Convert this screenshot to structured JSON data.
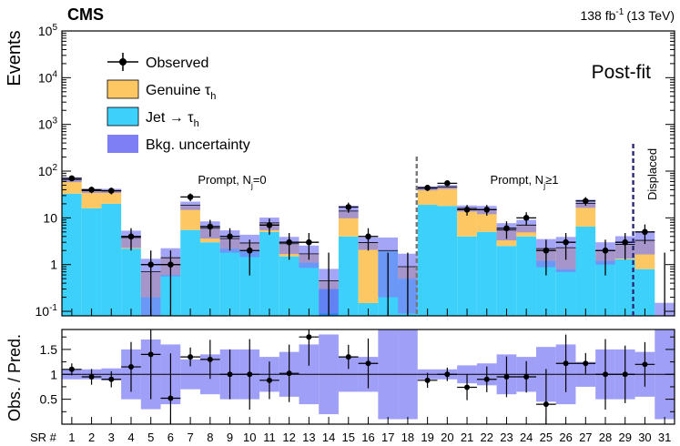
{
  "chart_data": {
    "type": "bar",
    "experiment": "CMS",
    "lumi": "138 fb",
    "lumi_sup": "-1",
    "energy": "(13 TeV)",
    "stage": "Post-fit",
    "ylabel": "Events",
    "ratio_ylabel": "Obs. / Pred.",
    "xlabel": "SR #",
    "ylim": [
      0.08,
      100000
    ],
    "ratio_ylim": [
      0.0,
      1.9
    ],
    "yticks_main": [
      {
        "base": "10",
        "exp": "-1",
        "v": 0.1
      },
      {
        "base": "1",
        "exp": "",
        "v": 1
      },
      {
        "base": "10",
        "exp": "",
        "v": 10
      },
      {
        "base": "10",
        "exp": "2",
        "v": 100
      },
      {
        "base": "10",
        "exp": "3",
        "v": 1000
      },
      {
        "base": "10",
        "exp": "4",
        "v": 10000
      },
      {
        "base": "10",
        "exp": "5",
        "v": 100000
      }
    ],
    "yticks_ratio": [
      "0.5",
      "1",
      "1.5"
    ],
    "categories": [
      "1",
      "2",
      "3",
      "4",
      "5",
      "6",
      "7",
      "8",
      "9",
      "10",
      "11",
      "12",
      "13",
      "14",
      "15",
      "16",
      "17",
      "18",
      "19",
      "20",
      "21",
      "22",
      "23",
      "24",
      "25",
      "26",
      "27",
      "28",
      "29",
      "30",
      "31"
    ],
    "region_labels": [
      {
        "text": "Prompt, N",
        "sub": "j",
        "rest": "=0"
      },
      {
        "text": "Prompt, N",
        "sub": "j",
        "rest": "≥1"
      },
      {
        "text": "Displaced",
        "sub": "",
        "rest": ""
      }
    ],
    "legend": {
      "observed": "Observed",
      "genuine": "Genuine τ",
      "genuine_sub": "h",
      "jet": "Jet → τ",
      "jet_sub": "h",
      "uncertainty": "Bkg. uncertainty"
    },
    "colors": {
      "genuine": "#fdc864",
      "jet": "#3cd0fa",
      "jet_highlight": "#1e8bf0",
      "uncertainty": "#7f7ff5",
      "uncertainty_overlap": "#806b8a",
      "divider_gray": "#777777",
      "divider_navy": "#2a2a7a",
      "observed": "#000000"
    },
    "series": [
      {
        "name": "Jet → τh",
        "values": [
          33,
          16,
          20,
          2.2,
          0.2,
          0.6,
          5.5,
          3,
          2.2,
          2,
          5,
          1.5,
          1.1,
          0.3,
          4,
          0.15,
          2,
          0.5,
          19,
          18,
          4,
          5,
          2.5,
          4,
          1.2,
          0.8,
          6.5,
          1.2,
          1.3,
          0.8,
          0.08
        ]
      },
      {
        "name": "Genuine τh",
        "values": [
          33,
          22,
          18,
          1.6,
          0.5,
          0.8,
          13,
          3,
          1.4,
          0.9,
          2.8,
          1.3,
          0.6,
          0.15,
          10,
          2.8,
          0,
          0.4,
          24,
          28,
          12,
          10,
          3,
          3,
          1,
          1.5,
          14,
          0.8,
          1.4,
          2.5,
          0
        ]
      },
      {
        "name": "Observed",
        "values": [
          70,
          40,
          38,
          4,
          1,
          1,
          28,
          6.5,
          4,
          2,
          7,
          3,
          3,
          0,
          17,
          4,
          0,
          0,
          44,
          55,
          15,
          15,
          6,
          10,
          2,
          3,
          23,
          2,
          3,
          5,
          0
        ]
      }
    ],
    "uncertainty_frac": [
      0.12,
      0.1,
      0.1,
      0.4,
      0.9,
      0.6,
      0.2,
      0.4,
      0.5,
      0.5,
      0.3,
      0.4,
      0.5,
      0.8,
      0.3,
      0.3,
      0.9,
      0.9,
      0.1,
      0.1,
      0.15,
      0.2,
      0.4,
      0.3,
      0.6,
      0.7,
      0.2,
      0.5,
      0.5,
      0.5,
      0.9
    ],
    "ratio_values": [
      1.1,
      0.95,
      0.9,
      1.15,
      1.4,
      0.52,
      1.35,
      1.3,
      1.0,
      1.0,
      0.88,
      1.02,
      1.75,
      null,
      1.35,
      1.22,
      null,
      null,
      0.88,
      1.0,
      0.74,
      0.9,
      0.95,
      0.95,
      0.4,
      1.22,
      1.22,
      1.0,
      1.0,
      1.2,
      null
    ],
    "ratio_unc": [
      0.1,
      0.1,
      0.12,
      0.5,
      0.7,
      0.6,
      0.3,
      0.4,
      0.5,
      0.5,
      0.35,
      0.45,
      0.6,
      0.8,
      0.35,
      0.35,
      0.9,
      0.9,
      0.1,
      0.1,
      0.18,
      0.22,
      0.4,
      0.35,
      0.55,
      0.6,
      0.25,
      0.5,
      0.5,
      0.45,
      0.9
    ]
  }
}
